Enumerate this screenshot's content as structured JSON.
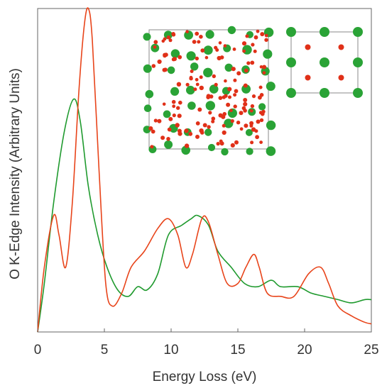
{
  "chart_data": {
    "type": "line",
    "xlabel": "Energy Loss (eV)",
    "ylabel": "O K-Edge Intensity (Arbitrary Units)",
    "xlim": [
      0,
      25
    ],
    "ylim": [
      0,
      1
    ],
    "x_ticks": [
      "0",
      "5",
      "10",
      "15",
      "20",
      "25"
    ],
    "grid": false,
    "series": [
      {
        "color": "#e8441a",
        "points": [
          [
            0,
            0
          ],
          [
            0.5,
            0.2
          ],
          [
            1.2,
            0.36
          ],
          [
            1.6,
            0.3
          ],
          [
            2.1,
            0.2
          ],
          [
            2.6,
            0.4
          ],
          [
            3.1,
            0.75
          ],
          [
            3.5,
            0.95
          ],
          [
            3.8,
            1.0
          ],
          [
            4.1,
            0.9
          ],
          [
            4.6,
            0.5
          ],
          [
            5.1,
            0.15
          ],
          [
            5.6,
            0.08
          ],
          [
            6.3,
            0.12
          ],
          [
            7.0,
            0.2
          ],
          [
            8.0,
            0.25
          ],
          [
            9.0,
            0.32
          ],
          [
            9.8,
            0.35
          ],
          [
            10.5,
            0.3
          ],
          [
            11.1,
            0.2
          ],
          [
            11.6,
            0.24
          ],
          [
            12.3,
            0.35
          ],
          [
            12.8,
            0.34
          ],
          [
            13.5,
            0.24
          ],
          [
            14.2,
            0.15
          ],
          [
            15.0,
            0.15
          ],
          [
            15.6,
            0.2
          ],
          [
            16.2,
            0.24
          ],
          [
            16.6,
            0.2
          ],
          [
            17.2,
            0.12
          ],
          [
            18.2,
            0.11
          ],
          [
            19.2,
            0.11
          ],
          [
            20.3,
            0.18
          ],
          [
            21.2,
            0.2
          ],
          [
            21.8,
            0.15
          ],
          [
            22.5,
            0.08
          ],
          [
            23.5,
            0.05
          ],
          [
            24.5,
            0.03
          ],
          [
            25,
            0.025
          ]
        ]
      },
      {
        "color": "#1f9a2e",
        "points": [
          [
            0,
            0
          ],
          [
            0.5,
            0.15
          ],
          [
            1.2,
            0.4
          ],
          [
            2.0,
            0.62
          ],
          [
            2.7,
            0.72
          ],
          [
            3.2,
            0.65
          ],
          [
            3.8,
            0.45
          ],
          [
            4.5,
            0.3
          ],
          [
            5.2,
            0.2
          ],
          [
            6.0,
            0.13
          ],
          [
            6.8,
            0.11
          ],
          [
            7.5,
            0.14
          ],
          [
            8.2,
            0.13
          ],
          [
            9.0,
            0.18
          ],
          [
            9.8,
            0.3
          ],
          [
            10.8,
            0.33
          ],
          [
            11.5,
            0.35
          ],
          [
            12.0,
            0.36
          ],
          [
            12.8,
            0.33
          ],
          [
            13.5,
            0.25
          ],
          [
            14.5,
            0.2
          ],
          [
            15.5,
            0.15
          ],
          [
            16.5,
            0.14
          ],
          [
            17.5,
            0.16
          ],
          [
            18.2,
            0.14
          ],
          [
            19.5,
            0.14
          ],
          [
            20.5,
            0.12
          ],
          [
            21.5,
            0.11
          ],
          [
            22.5,
            0.1
          ],
          [
            23.5,
            0.09
          ],
          [
            24.5,
            0.1
          ],
          [
            25,
            0.1
          ]
        ]
      }
    ]
  },
  "insets": {
    "amorphous_structure": {
      "large_atom_color": "#2aa336",
      "small_atom_color": "#e03018"
    },
    "crystal_structure": {
      "large_atom_color": "#2aa336",
      "small_atom_color": "#e03018"
    }
  }
}
